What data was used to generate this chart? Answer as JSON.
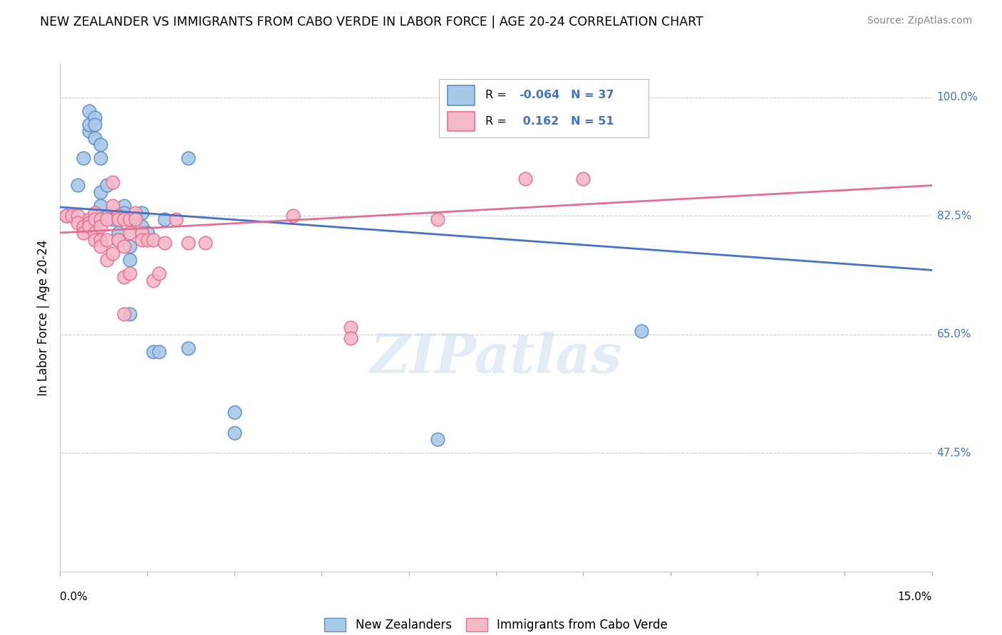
{
  "title": "NEW ZEALANDER VS IMMIGRANTS FROM CABO VERDE IN LABOR FORCE | AGE 20-24 CORRELATION CHART",
  "source": "Source: ZipAtlas.com",
  "ylabel": "In Labor Force | Age 20-24",
  "ytick_vals": [
    1.0,
    0.825,
    0.65,
    0.475
  ],
  "ytick_labels": [
    "100.0%",
    "82.5%",
    "65.0%",
    "47.5%"
  ],
  "xmin": 0.0,
  "xmax": 0.15,
  "ymin": 0.3,
  "ymax": 1.05,
  "blue_R": "-0.064",
  "blue_N": "37",
  "pink_R": "0.162",
  "pink_N": "51",
  "legend_label_blue": "New Zealanders",
  "legend_label_pink": "Immigrants from Cabo Verde",
  "blue_scatter": [
    [
      0.001,
      0.825
    ],
    [
      0.003,
      0.87
    ],
    [
      0.004,
      0.91
    ],
    [
      0.005,
      0.95
    ],
    [
      0.005,
      0.96
    ],
    [
      0.005,
      0.98
    ],
    [
      0.006,
      0.97
    ],
    [
      0.006,
      0.96
    ],
    [
      0.006,
      0.94
    ],
    [
      0.007,
      0.93
    ],
    [
      0.007,
      0.91
    ],
    [
      0.007,
      0.86
    ],
    [
      0.007,
      0.84
    ],
    [
      0.008,
      0.87
    ],
    [
      0.009,
      0.83
    ],
    [
      0.009,
      0.82
    ],
    [
      0.01,
      0.82
    ],
    [
      0.01,
      0.8
    ],
    [
      0.01,
      0.79
    ],
    [
      0.011,
      0.84
    ],
    [
      0.011,
      0.83
    ],
    [
      0.012,
      0.78
    ],
    [
      0.012,
      0.76
    ],
    [
      0.012,
      0.68
    ],
    [
      0.013,
      0.82
    ],
    [
      0.014,
      0.83
    ],
    [
      0.014,
      0.81
    ],
    [
      0.015,
      0.8
    ],
    [
      0.016,
      0.625
    ],
    [
      0.017,
      0.625
    ],
    [
      0.018,
      0.82
    ],
    [
      0.022,
      0.91
    ],
    [
      0.022,
      0.63
    ],
    [
      0.03,
      0.535
    ],
    [
      0.03,
      0.505
    ],
    [
      0.065,
      0.495
    ],
    [
      0.1,
      0.655
    ]
  ],
  "pink_scatter": [
    [
      0.001,
      0.825
    ],
    [
      0.002,
      0.825
    ],
    [
      0.003,
      0.825
    ],
    [
      0.003,
      0.815
    ],
    [
      0.004,
      0.81
    ],
    [
      0.004,
      0.8
    ],
    [
      0.005,
      0.82
    ],
    [
      0.005,
      0.815
    ],
    [
      0.005,
      0.81
    ],
    [
      0.006,
      0.83
    ],
    [
      0.006,
      0.82
    ],
    [
      0.006,
      0.8
    ],
    [
      0.006,
      0.79
    ],
    [
      0.007,
      0.82
    ],
    [
      0.007,
      0.81
    ],
    [
      0.007,
      0.79
    ],
    [
      0.007,
      0.78
    ],
    [
      0.008,
      0.82
    ],
    [
      0.008,
      0.79
    ],
    [
      0.008,
      0.76
    ],
    [
      0.009,
      0.875
    ],
    [
      0.009,
      0.84
    ],
    [
      0.009,
      0.77
    ],
    [
      0.01,
      0.825
    ],
    [
      0.01,
      0.82
    ],
    [
      0.01,
      0.79
    ],
    [
      0.011,
      0.82
    ],
    [
      0.011,
      0.78
    ],
    [
      0.011,
      0.735
    ],
    [
      0.011,
      0.68
    ],
    [
      0.012,
      0.82
    ],
    [
      0.012,
      0.8
    ],
    [
      0.012,
      0.74
    ],
    [
      0.013,
      0.83
    ],
    [
      0.013,
      0.82
    ],
    [
      0.014,
      0.8
    ],
    [
      0.014,
      0.79
    ],
    [
      0.015,
      0.79
    ],
    [
      0.016,
      0.79
    ],
    [
      0.016,
      0.73
    ],
    [
      0.017,
      0.74
    ],
    [
      0.018,
      0.785
    ],
    [
      0.02,
      0.82
    ],
    [
      0.022,
      0.785
    ],
    [
      0.025,
      0.785
    ],
    [
      0.04,
      0.825
    ],
    [
      0.05,
      0.66
    ],
    [
      0.05,
      0.645
    ],
    [
      0.065,
      0.82
    ],
    [
      0.08,
      0.88
    ],
    [
      0.09,
      0.88
    ]
  ],
  "blue_line_x": [
    0.0,
    0.15
  ],
  "blue_line_y": [
    0.838,
    0.745
  ],
  "pink_line_x": [
    0.0,
    0.15
  ],
  "pink_line_y": [
    0.8,
    0.87
  ],
  "blue_fill_color": "#A8C8E8",
  "pink_fill_color": "#F4B8C8",
  "blue_edge_color": "#6090C8",
  "pink_edge_color": "#E87090",
  "blue_line_color": "#4472C4",
  "pink_line_color": "#E07090",
  "watermark": "ZIPatlas",
  "background_color": "#FFFFFF",
  "grid_color": "#CCCCCC"
}
